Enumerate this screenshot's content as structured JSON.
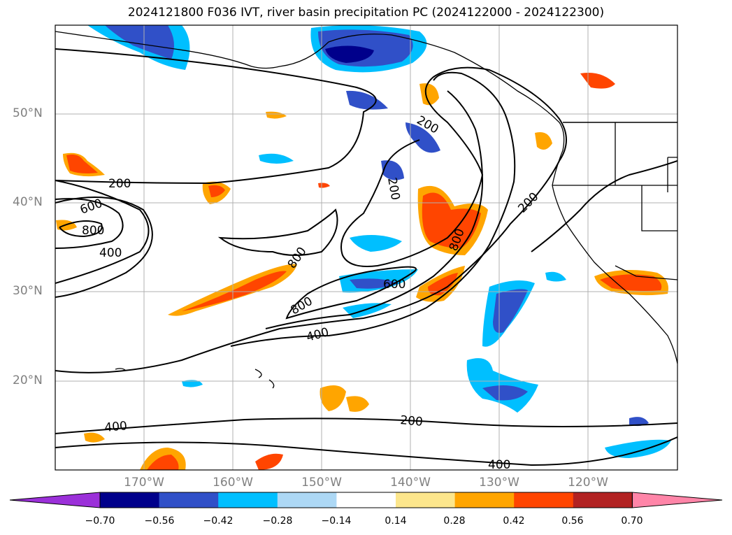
{
  "title": "2024121800 F036 IVT, river basin precipitation PC (2024122000 - 2024122300)",
  "lat_labels": [
    "50°N",
    "40°N",
    "30°N",
    "20°N"
  ],
  "lon_labels": [
    "170°W",
    "160°W",
    "150°W",
    "140°W",
    "130°W",
    "120°W"
  ],
  "contour_labels": [
    "200",
    "200",
    "200",
    "200",
    "200",
    "600",
    "800",
    "400",
    "800",
    "800",
    "600",
    "800",
    "400",
    "400",
    "400",
    "800"
  ],
  "colorbar": {
    "colors": [
      "#9b30d9",
      "#00008b",
      "#3050c8",
      "#00bfff",
      "#add8f5",
      "#ffffff",
      "#fce68c",
      "#ffa500",
      "#ff4500",
      "#b22222",
      "#ff85a8"
    ],
    "tick_labels": [
      "−0.70",
      "−0.56",
      "−0.42",
      "−0.28",
      "−0.14",
      "0.14",
      "0.28",
      "0.42",
      "0.56",
      "0.70"
    ]
  },
  "map_colors": {
    "coast": "#000000",
    "grid": "#b0b0b0",
    "contour": "#000000"
  }
}
